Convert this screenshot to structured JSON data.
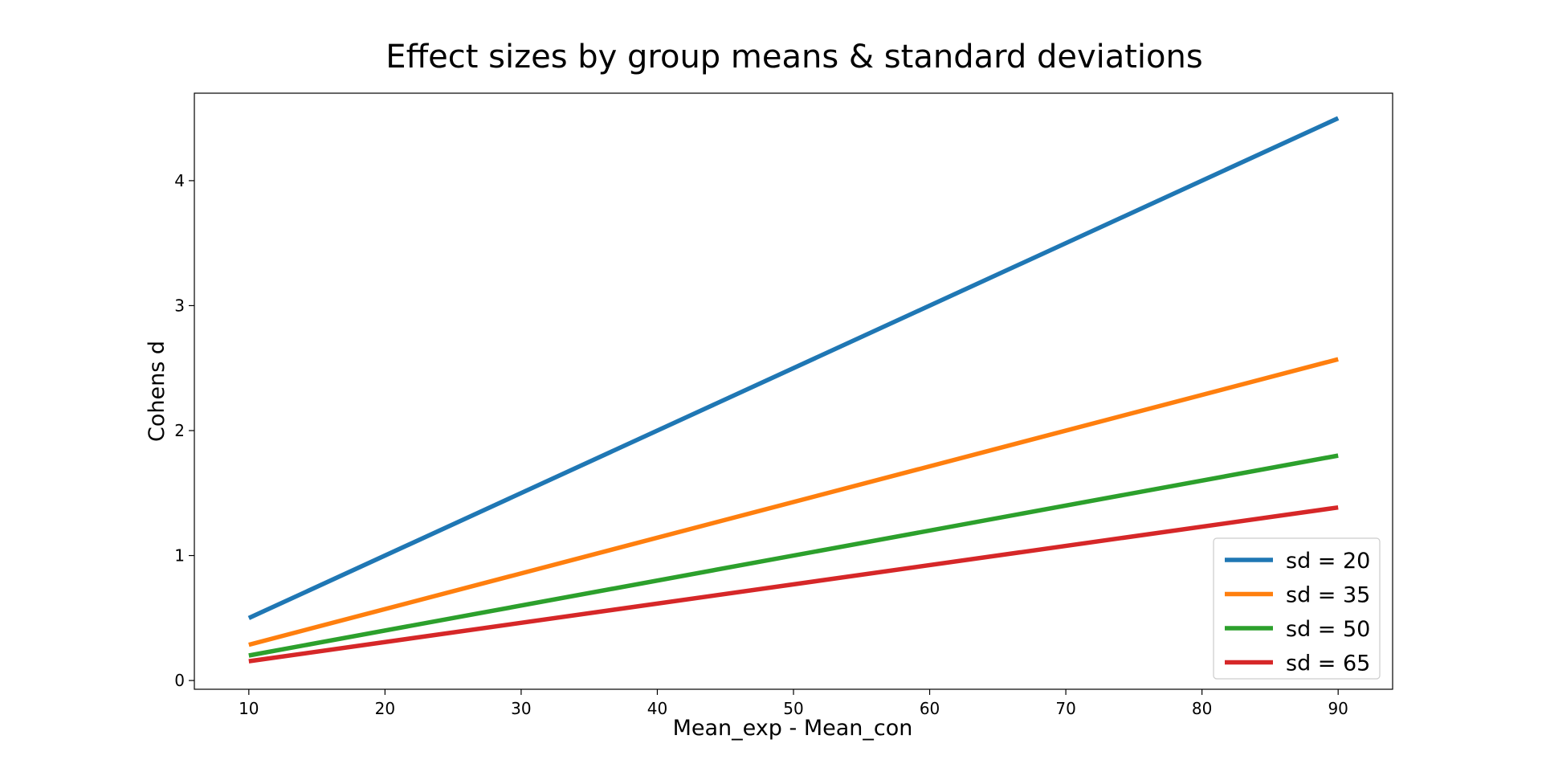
{
  "chart_data": {
    "type": "line",
    "title": "Effect sizes by group means & standard deviations",
    "xlabel": "Mean_exp - Mean_con",
    "ylabel": "Cohens d",
    "xlim": [
      6,
      94
    ],
    "ylim": [
      -0.07,
      4.7
    ],
    "x_ticks": [
      10,
      20,
      30,
      40,
      50,
      60,
      70,
      80,
      90
    ],
    "y_ticks": [
      0,
      1,
      2,
      3,
      4
    ],
    "grid": false,
    "legend_position": "lower-right",
    "series": [
      {
        "name": "sd = 20",
        "color": "#1f77b4",
        "x": [
          10,
          90
        ],
        "y": [
          0.5,
          4.5
        ]
      },
      {
        "name": "sd = 35",
        "color": "#ff7f0e",
        "x": [
          10,
          90
        ],
        "y": [
          0.286,
          2.571
        ]
      },
      {
        "name": "sd = 50",
        "color": "#2ca02c",
        "x": [
          10,
          90
        ],
        "y": [
          0.2,
          1.8
        ]
      },
      {
        "name": "sd = 65",
        "color": "#d62728",
        "x": [
          10,
          90
        ],
        "y": [
          0.154,
          1.385
        ]
      }
    ]
  }
}
